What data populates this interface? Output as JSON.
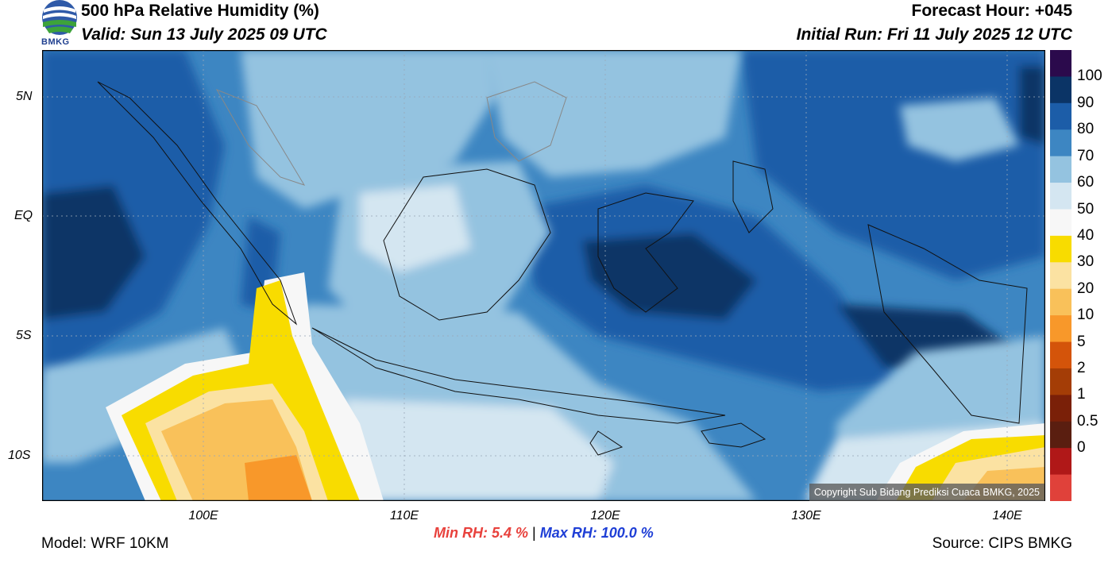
{
  "header": {
    "title": "500 hPa Relative Humidity (%)",
    "valid": "Valid: Sun 13 July 2025 09 UTC",
    "forecast_hour": "Forecast Hour: +045",
    "initial_run": "Initial Run: Fri 11 July 2025 12 UTC",
    "logo_text": "BMKG"
  },
  "map": {
    "lon_labels": [
      "100E",
      "110E",
      "120E",
      "130E",
      "140E"
    ],
    "lat_labels": [
      "5N",
      "EQ",
      "5S",
      "10S"
    ],
    "copyright": "Copyright Sub Bidang Prediksi Cuaca BMKG, 2025"
  },
  "colorbar": {
    "labels": [
      "100",
      "90",
      "80",
      "70",
      "60",
      "50",
      "40",
      "30",
      "20",
      "10",
      "5",
      "2",
      "1",
      "0.5",
      "0"
    ],
    "colors": [
      "#2b0a4c",
      "#0b3466",
      "#1c5da8",
      "#3d86c2",
      "#94c3e0",
      "#d4e6f1",
      "#f7f7f7",
      "#f8dc00",
      "#fbe2a2",
      "#f9c15a",
      "#f8982a",
      "#d4540a",
      "#a43d06",
      "#7a2008",
      "#5a1e10",
      "#b01818",
      "#e0413a"
    ]
  },
  "footer": {
    "model": "Model: WRF 10KM",
    "source": "Source: CIPS BMKG",
    "min_label": "Min RH:",
    "min_value": "5.4 %",
    "separator": "|",
    "max_label": "Max RH: 100.0 %"
  }
}
